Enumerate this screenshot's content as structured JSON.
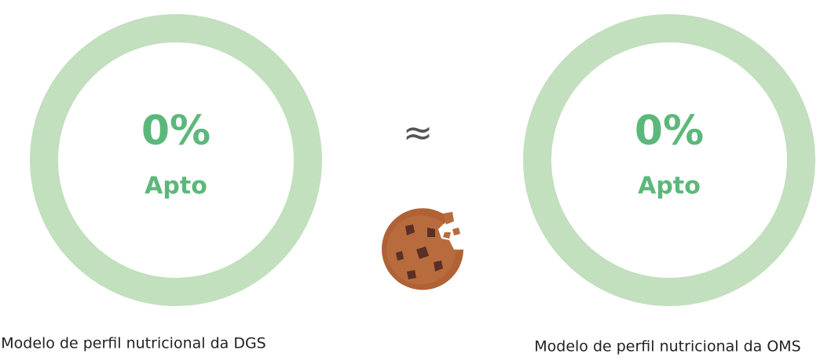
{
  "gauges": [
    {
      "value": 0,
      "value_label": "0%",
      "status": "Apto",
      "caption": "Modelo de perfil nutricional da DGS"
    },
    {
      "value": 0,
      "value_label": "0%",
      "status": "Apto",
      "caption": "Modelo de perfil nutricional da OMS"
    }
  ],
  "separator": "≈"
}
